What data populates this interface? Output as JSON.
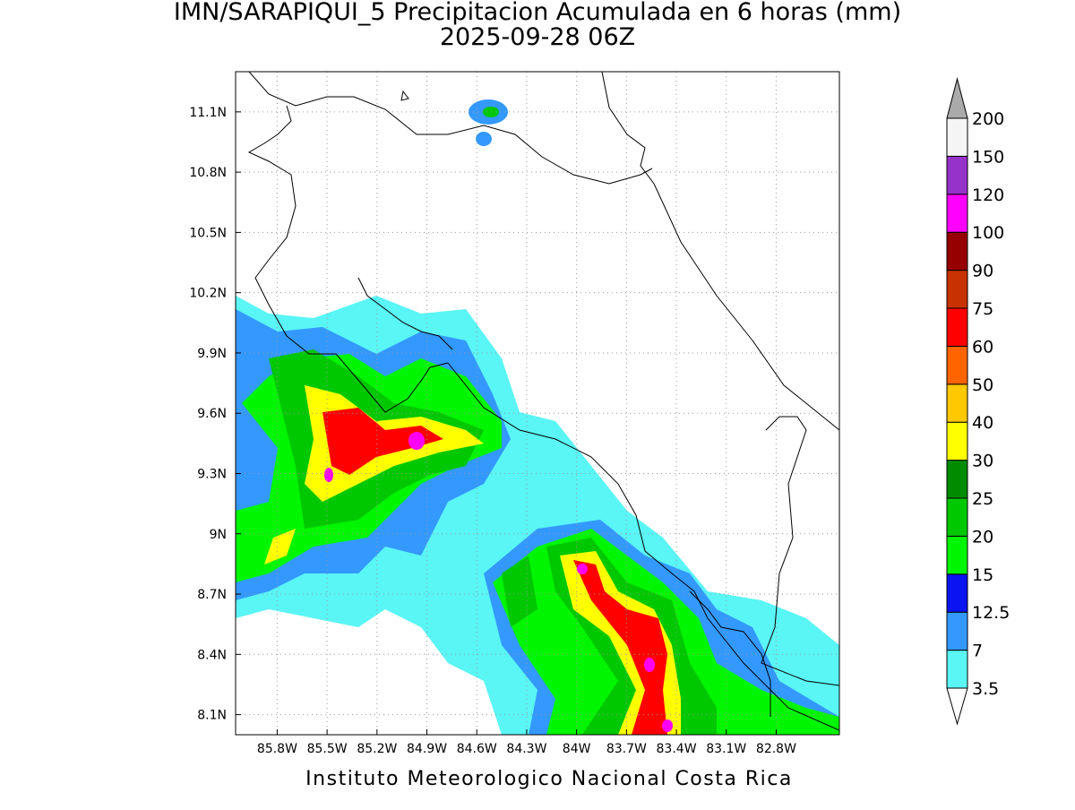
{
  "map": {
    "title": "IMN/SARAPIQUI_5 Precipitacion Acumulada en 6 horas (mm)",
    "subtitle": "2025-09-28 06Z",
    "footer": "Instituto Meteorologico Nacional Costa Rica",
    "xlim": [
      -86.05,
      -82.42
    ],
    "ylim": [
      8.0,
      11.3
    ],
    "xticks": [
      {
        "value": -85.8,
        "label": "85.8W"
      },
      {
        "value": -85.5,
        "label": "85.5W"
      },
      {
        "value": -85.2,
        "label": "85.2W"
      },
      {
        "value": -84.9,
        "label": "84.9W"
      },
      {
        "value": -84.6,
        "label": "84.6W"
      },
      {
        "value": -84.3,
        "label": "84.3W"
      },
      {
        "value": -84.0,
        "label": "84W"
      },
      {
        "value": -83.7,
        "label": "83.7W"
      },
      {
        "value": -83.4,
        "label": "83.4W"
      },
      {
        "value": -83.1,
        "label": "83.1W"
      },
      {
        "value": -82.8,
        "label": "82.8W"
      }
    ],
    "yticks": [
      {
        "value": 8.1,
        "label": "8.1N"
      },
      {
        "value": 8.4,
        "label": "8.4N"
      },
      {
        "value": 8.7,
        "label": "8.7N"
      },
      {
        "value": 9.0,
        "label": "9N"
      },
      {
        "value": 9.3,
        "label": "9.3N"
      },
      {
        "value": 9.6,
        "label": "9.6N"
      },
      {
        "value": 9.9,
        "label": "9.9N"
      },
      {
        "value": 10.2,
        "label": "10.2N"
      },
      {
        "value": 10.5,
        "label": "10.5N"
      },
      {
        "value": 10.8,
        "label": "10.8N"
      },
      {
        "value": 11.1,
        "label": "11.1N"
      }
    ],
    "grid": true,
    "colorbar": {
      "levels": [
        3.5,
        7,
        12.5,
        15,
        20,
        25,
        30,
        40,
        50,
        60,
        75,
        90,
        100,
        120,
        150,
        200
      ],
      "colors": [
        "#5af5f5",
        "#3399ff",
        "#0a14f0",
        "#00f500",
        "#00c800",
        "#008c00",
        "#ffff00",
        "#ffc800",
        "#ff6400",
        "#ff0000",
        "#c83200",
        "#960000",
        "#ff00ff",
        "#9632c8",
        "#f5f5f5"
      ],
      "under_color": "#ffffff",
      "over_color": "#aaaaaa"
    }
  }
}
